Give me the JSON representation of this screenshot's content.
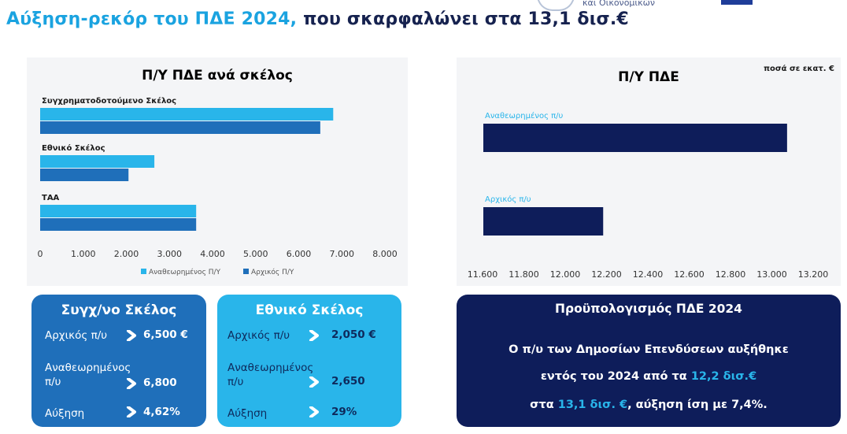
{
  "header": {
    "title_highlight": "Αύξηση-ρεκόρ του ΠΔΕ 2024,",
    "title_rest": "που σκαρφαλώνει στα 13,1 δισ.€",
    "logo_text": "και Οικονομικών"
  },
  "colors": {
    "revised": "#29b5ea",
    "initial": "#1f6fba",
    "navy": "#0e1d5a",
    "dark_bar": "#0e1d5a"
  },
  "chart_data": [
    {
      "type": "bar",
      "orientation": "horizontal",
      "title": "Π/Υ ΠΔΕ ανά σκέλος",
      "categories": [
        "Συγχρηματοδοτούμενο Σκέλος",
        "Εθνικό Σκέλος",
        "ΤΑΑ"
      ],
      "series": [
        {
          "name": "Αναθεωρημένος Π/Υ",
          "values": [
            6800,
            2650,
            3620
          ]
        },
        {
          "name": "Αρχικός Π/Υ",
          "values": [
            6500,
            2050,
            3620
          ]
        }
      ],
      "xlim": [
        0,
        8000
      ],
      "xticks": [
        "0",
        "1.000",
        "2.000",
        "3.000",
        "4.000",
        "5.000",
        "6.000",
        "7.000",
        "8.000"
      ],
      "legend": "bottom",
      "grid": false
    },
    {
      "type": "bar",
      "orientation": "horizontal",
      "title": "Π/Υ ΠΔΕ",
      "unit_note": "ποσά σε εκατ. €",
      "categories": [
        "Αναθεωρημένος π/υ",
        "Αρχικός π/υ"
      ],
      "values": [
        13070,
        12180
      ],
      "xlim": [
        11600,
        13200
      ],
      "xticks": [
        "11.600",
        "11.800",
        "12.000",
        "12.200",
        "12.400",
        "12.600",
        "12.800",
        "13.000",
        "13.200"
      ],
      "grid": false
    }
  ],
  "sygx_box": {
    "title": "Συγχ/νο Σκέλος",
    "row1_label": "Αρχικός π/υ",
    "row1_value": "6,500 €",
    "row2_label_a": "Αναθεωρημένος",
    "row2_label_b": "π/υ",
    "row2_value": "6,800",
    "row3_label": "Αύξηση",
    "row3_value": "4,62%"
  },
  "ethn_box": {
    "title": "Εθνικό Σκέλος",
    "row1_label": "Αρχικός π/υ",
    "row1_value": "2,050 €",
    "row2_label_a": "Αναθεωρημένος",
    "row2_label_b": "π/υ",
    "row2_value": "2,650",
    "row3_label": "Αύξηση",
    "row3_value": "29%"
  },
  "budget_box": {
    "title": "Προϋπολογισμός ΠΔΕ 2024",
    "line1": "Ο π/υ των Δημοσίων Επενδύσεων αυξήθηκε",
    "line2_pre": "εντός του 2024 από τα ",
    "line2_hl": "12,2 δισ.€",
    "line3_pre": "στα ",
    "line3_hl": "13,1 δισ. €",
    "line3_post": ", αύξηση ίση με 7,4%."
  }
}
